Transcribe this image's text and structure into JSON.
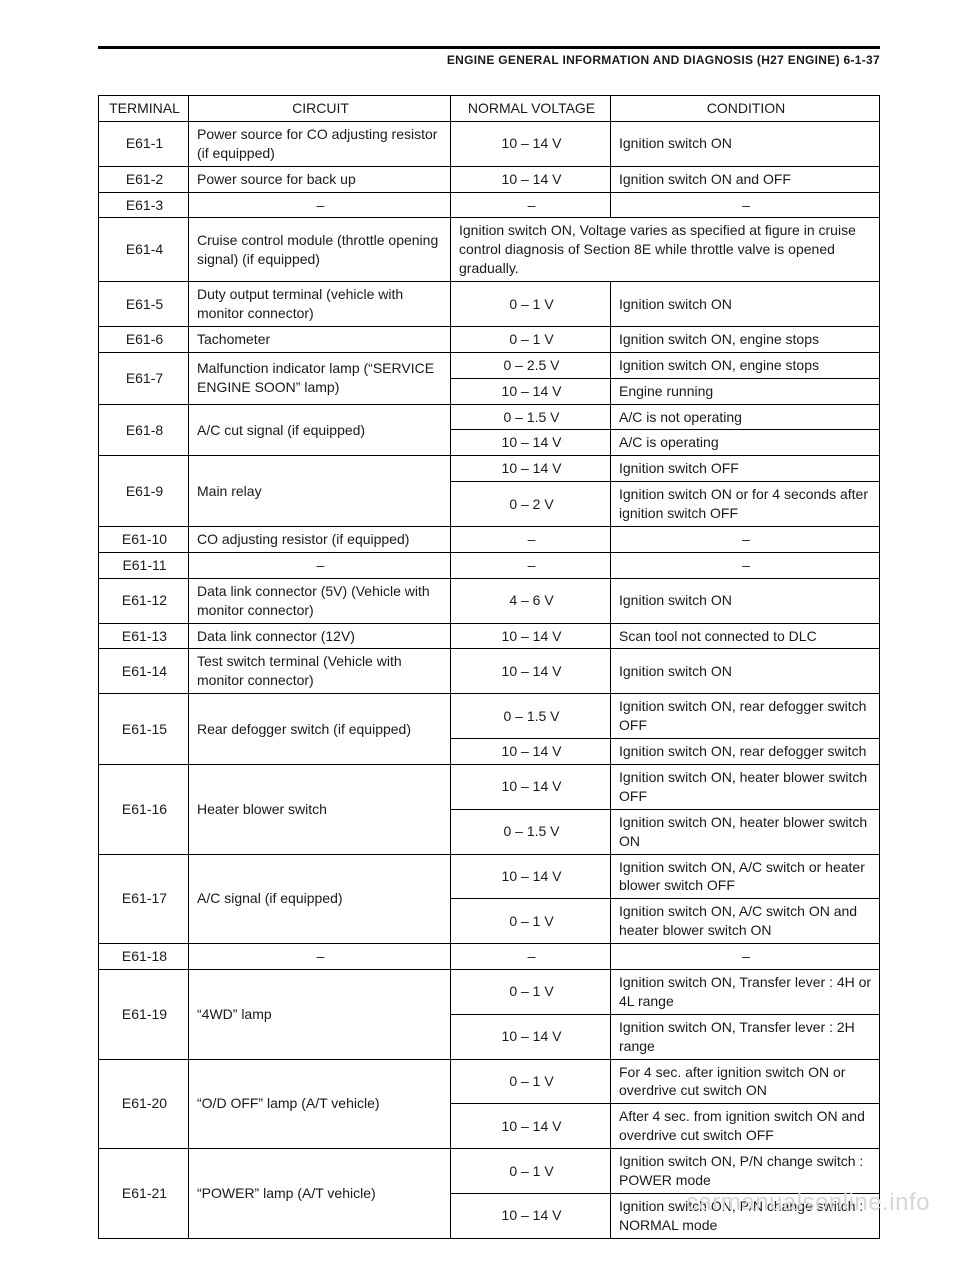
{
  "header": "ENGINE GENERAL INFORMATION AND DIAGNOSIS (H27 ENGINE) 6-1-37",
  "dash": "–",
  "watermark": "carmanualsonline.info",
  "columns": {
    "terminal": "TERMINAL",
    "circuit": "CIRCUIT",
    "voltage": "NORMAL VOLTAGE",
    "condition": "CONDITION"
  },
  "rows": {
    "r1": {
      "term": "E61-1",
      "circuit": "Power source for CO adjusting resistor (if equipped)",
      "volt": "10 – 14 V",
      "cond": "Ignition switch ON"
    },
    "r2": {
      "term": "E61-2",
      "circuit": "Power source for back up",
      "volt": "10 – 14 V",
      "cond": "Ignition switch ON and OFF"
    },
    "r3": {
      "term": "E61-3"
    },
    "r4": {
      "term": "E61-4",
      "circuit": "Cruise control module (throttle opening signal)\n(if equipped)",
      "merged": "Ignition switch ON, Voltage varies as specified at figure in cruise control diagnosis of Section 8E while throttle valve is opened gradually."
    },
    "r5": {
      "term": "E61-5",
      "circuit": "Duty output terminal\n(vehicle with monitor connector)",
      "volt": "0 – 1 V",
      "cond": "Ignition switch ON"
    },
    "r6": {
      "term": "E61-6",
      "circuit": "Tachometer",
      "volt": "0 – 1 V",
      "cond": "Ignition switch ON, engine stops"
    },
    "r7": {
      "term": "E61-7",
      "circuit": "Malfunction indicator lamp (“SERVICE ENGINE SOON” lamp)",
      "sub": [
        {
          "volt": "0 – 2.5 V",
          "cond": "Ignition switch ON, engine stops"
        },
        {
          "volt": "10 – 14 V",
          "cond": "Engine running"
        }
      ]
    },
    "r8": {
      "term": "E61-8",
      "circuit": "A/C cut signal (if equipped)",
      "sub": [
        {
          "volt": "0 – 1.5 V",
          "cond": "A/C is not operating"
        },
        {
          "volt": "10 – 14 V",
          "cond": "A/C is operating"
        }
      ]
    },
    "r9": {
      "term": "E61-9",
      "circuit": "Main relay",
      "sub": [
        {
          "volt": "10 – 14 V",
          "cond": "Ignition switch OFF"
        },
        {
          "volt": "0 – 2 V",
          "cond": "Ignition switch ON or for 4 seconds after ignition switch OFF"
        }
      ]
    },
    "r10": {
      "term": "E61-10",
      "circuit": "CO adjusting resistor (if equipped)"
    },
    "r11": {
      "term": "E61-11"
    },
    "r12": {
      "term": "E61-12",
      "circuit": "Data link connector (5V) (Vehicle with monitor connector)",
      "volt": "4 – 6 V",
      "cond": "Ignition switch ON"
    },
    "r13": {
      "term": "E61-13",
      "circuit": "Data link connector (12V)",
      "volt": "10 – 14 V",
      "cond": "Scan tool not connected to DLC"
    },
    "r14": {
      "term": "E61-14",
      "circuit": "Test switch terminal\n(Vehicle with monitor connector)",
      "volt": "10 – 14 V",
      "cond": "Ignition switch ON"
    },
    "r15": {
      "term": "E61-15",
      "circuit": "Rear defogger switch (if equipped)",
      "sub": [
        {
          "volt": "0 – 1.5 V",
          "cond": "Ignition switch ON, rear defogger switch OFF"
        },
        {
          "volt": "10 – 14 V",
          "cond": "Ignition switch ON, rear defogger switch"
        }
      ]
    },
    "r16": {
      "term": "E61-16",
      "circuit": "Heater blower switch",
      "sub": [
        {
          "volt": "10 – 14 V",
          "cond": "Ignition switch ON, heater blower switch OFF"
        },
        {
          "volt": "0 – 1.5 V",
          "cond": "Ignition switch ON, heater blower switch ON"
        }
      ]
    },
    "r17": {
      "term": "E61-17",
      "circuit": "A/C signal (if equipped)",
      "sub": [
        {
          "volt": "10 – 14 V",
          "cond": "Ignition switch ON, A/C switch or heater blower switch OFF"
        },
        {
          "volt": "0 – 1 V",
          "cond": "Ignition switch ON, A/C switch ON and heater blower switch ON"
        }
      ]
    },
    "r18": {
      "term": "E61-18"
    },
    "r19": {
      "term": "E61-19",
      "circuit": "“4WD” lamp",
      "sub": [
        {
          "volt": "0 – 1 V",
          "cond": "Ignition switch ON, Transfer lever : 4H or 4L range"
        },
        {
          "volt": "10 – 14 V",
          "cond": "Ignition switch ON, Transfer lever : 2H range"
        }
      ]
    },
    "r20": {
      "term": "E61-20",
      "circuit": "“O/D OFF” lamp (A/T vehicle)",
      "sub": [
        {
          "volt": "0 – 1 V",
          "cond": "For 4 sec. after ignition switch ON or overdrive cut switch ON"
        },
        {
          "volt": "10 – 14 V",
          "cond": "After 4 sec. from ignition switch ON and overdrive cut switch OFF"
        }
      ]
    },
    "r21": {
      "term": "E61-21",
      "circuit": "“POWER” lamp (A/T vehicle)",
      "sub": [
        {
          "volt": "0 – 1 V",
          "cond": "Ignition switch ON, P/N change switch : POWER mode"
        },
        {
          "volt": "10 – 14 V",
          "cond": "Ignition switch ON, P/N change switch : NORMAL mode"
        }
      ]
    }
  }
}
